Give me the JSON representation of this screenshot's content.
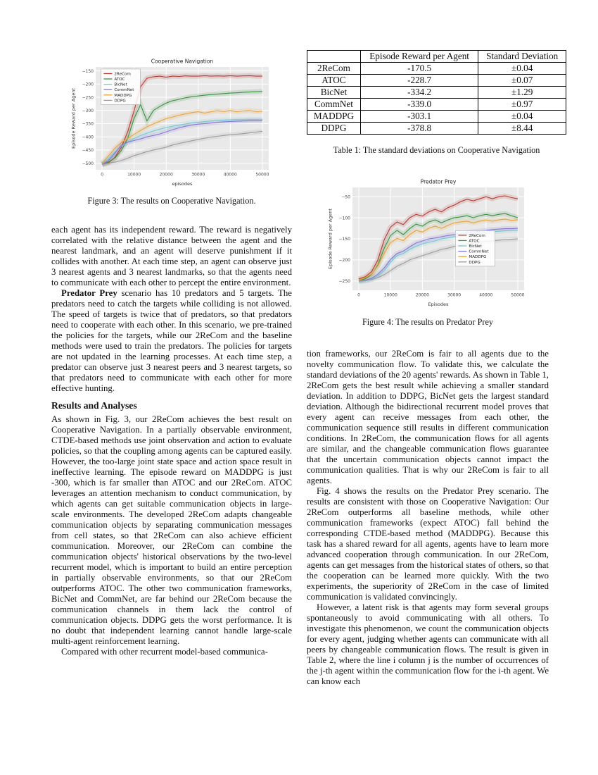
{
  "figure3": {
    "caption": "Figure 3: The results on Cooperative Navigation."
  },
  "figure4": {
    "caption": "Figure 4: The results on Predator Prey"
  },
  "table1": {
    "headers": [
      "",
      "Episode Reward per Agent",
      "Standard Deviation"
    ],
    "rows": [
      [
        "2ReCom",
        "-170.5",
        "±0.04"
      ],
      [
        "ATOC",
        "-228.7",
        "±0.07"
      ],
      [
        "BicNet",
        "-334.2",
        "±1.29"
      ],
      [
        "CommNet",
        "-339.0",
        "±0.97"
      ],
      [
        "MADDPG",
        "-303.1",
        "±0.04"
      ],
      [
        "DDPG",
        "-378.8",
        "±8.44"
      ]
    ],
    "caption": "Table 1: The standard deviations on Cooperative Navigation"
  },
  "left_column": {
    "para1": "each agent has its independent reward. The reward is negatively correlated with the relative distance between the agent and the nearest landmark, and an agent will deserve punishment if it collides with another. At each time step, an agent can observe just 3 nearest agents and 3 nearest landmarks, so that the agents need to communicate with each other to percept the entire environment.",
    "para2_lead": "Predator Prey",
    "para2_rest": " scenario has 10 predators and 5 targets. The predators need to catch the targets while colliding is not allowed. The speed of targets is twice that of predators, so that predators need to cooperate with each other. In this scenario, we pre-trained the policies for the targets, while our 2ReCom and the baseline methods were used to train the predators. The policies for targets are not updated in the learning processes. At each time step, a predator can observe just 3 nearest peers and 3 nearest targets, so that predators need to communicate with each other for more effective hunting.",
    "heading": "Results and Analyses",
    "para3": "As shown in Fig. 3, our 2ReCom achieves the best result on Cooperative Navigation. In a partially observable environment, CTDE-based methods use joint observation and action to evaluate policies, so that the coupling among agents can be captured easily. However, the too-large joint state space and action space result in ineffective learning. The episode reward on MADDPG is just -300, which is far smaller than ATOC and our 2ReCom. ATOC leverages an attention mechanism to conduct communication, by which agents can get suitable communication objects in large-scale environments. The developed 2ReCom adapts changeable communication objects by separating communication messages from cell states, so that 2ReCom can also achieve efficient communication. Moreover, our 2ReCom can combine the communication objects' historical observations by the two-level recurrent model, which is important to build an entire perception in partially observable environments, so that our 2ReCom outperforms ATOC. The other two communication frameworks, BicNet and CommNet, are far behind our 2ReCom because the communication channels in them lack the control of communication objects. DDPG gets the worst performance. It is no doubt that independent learning cannot handle large-scale multi-agent reinforcement learning.",
    "para4": "Compared with other recurrent model-based communica-"
  },
  "right_column": {
    "para1": "tion frameworks, our 2ReCom is fair to all agents due to the novelty communication flow. To validate this, we calculate the standard deviations of the 20 agents' rewards. As shown in Table 1, 2ReCom gets the best result while achieving a smaller standard deviation. In addition to DDPG, BicNet gets the largest standard deviation. Although the bidirectional recurrent model proves that every agent can receive messages from each other, the communication sequence still results in different communication conditions. In 2ReCom, the communication flows for all agents are similar, and the changeable communication flows guarantee that the uncertain communication objects cannot impact the communication qualities. That is why our 2ReCom is fair to all agents.",
    "para2": "Fig. 4 shows the results on the Predator Prey scenario. The results are consistent with those on Cooperative Navigation: Our 2ReCom outperforms all baseline methods, while other communication frameworks (expect ATOC) fall behind the corresponding CTDE-based method (MADDPG). Because this task has a shared reward for all agents, agents have to learn more advanced cooperation through communication. In our 2ReCom, agents can get messages from the historical states of others, so that the cooperation can be learned more quickly. With the two experiments, the superiority of 2ReCom in the case of limited communication is validated convincingly.",
    "para3": "However, a latent risk is that agents may form several groups spontaneously to avoid communicating with all others. To investigate this phenomenon, we count the communication objects for every agent, judging whether agents can communicate with all peers by changeable communication flows. The result is given in Table 2, where the line i column j is the number of occurrences of the j-th agent within the communication flow for the i-th agent. We can know each"
  },
  "chart_data": [
    {
      "type": "line",
      "title": "Cooperative Navigation",
      "xlabel": "episodes",
      "ylabel": "Episode Reward per Agent",
      "xlim": [
        -2000,
        52000
      ],
      "ylim": [
        -525,
        -135
      ],
      "xticks": [
        0,
        10000,
        20000,
        30000,
        40000,
        50000
      ],
      "yticks": [
        -500,
        -450,
        -400,
        -350,
        -300,
        -250,
        -200,
        -150
      ],
      "grid": true,
      "plot_bg": "#e9e9e9",
      "legend": {
        "x": 0.03,
        "y": 0.02
      },
      "x": [
        0,
        2000,
        4000,
        6000,
        8000,
        10000,
        12000,
        14000,
        16000,
        18000,
        20000,
        22000,
        24000,
        26000,
        28000,
        30000,
        32000,
        34000,
        36000,
        38000,
        40000,
        42000,
        44000,
        46000,
        48000,
        50000
      ],
      "series": [
        {
          "name": "2ReCom",
          "color": "#b63a32",
          "values": [
            -505,
            -498,
            -478,
            -440,
            -380,
            -300,
            -210,
            -178,
            -172,
            -170,
            -174,
            -170,
            -171,
            -169,
            -170,
            -170,
            -168,
            -170,
            -169,
            -170,
            -168,
            -170,
            -169,
            -168,
            -170,
            -170
          ]
        },
        {
          "name": "ATOC",
          "color": "#3f8f44",
          "values": [
            -505,
            -495,
            -480,
            -452,
            -405,
            -330,
            -278,
            -340,
            -300,
            -285,
            -272,
            -263,
            -258,
            -252,
            -248,
            -245,
            -242,
            -240,
            -238,
            -236,
            -234,
            -233,
            -231,
            -230,
            -229,
            -228
          ]
        },
        {
          "name": "BicNet",
          "color": "#76c7cf",
          "values": [
            -500,
            -482,
            -458,
            -436,
            -420,
            -406,
            -395,
            -386,
            -378,
            -371,
            -365,
            -360,
            -355,
            -351,
            -347,
            -345,
            -342,
            -340,
            -338,
            -337,
            -336,
            -335,
            -335,
            -334,
            -334,
            -334
          ]
        },
        {
          "name": "CommNet",
          "color": "#8676d6",
          "values": [
            -505,
            -490,
            -462,
            -432,
            -420,
            -414,
            -408,
            -400,
            -395,
            -389,
            -381,
            -373,
            -366,
            -360,
            -355,
            -352,
            -350,
            -348,
            -345,
            -343,
            -342,
            -341,
            -340,
            -339,
            -339,
            -339
          ]
        },
        {
          "name": "MADDPG",
          "color": "#e6a23c",
          "values": [
            -500,
            -472,
            -443,
            -421,
            -406,
            -391,
            -376,
            -362,
            -351,
            -341,
            -331,
            -325,
            -318,
            -313,
            -308,
            -305,
            -310,
            -305,
            -301,
            -304,
            -300,
            -305,
            -302,
            -300,
            -304,
            -303
          ]
        },
        {
          "name": "DDPG",
          "color": "#9a9a9a",
          "values": [
            -505,
            -500,
            -496,
            -490,
            -481,
            -471,
            -464,
            -456,
            -450,
            -445,
            -439,
            -431,
            -425,
            -420,
            -415,
            -410,
            -405,
            -401,
            -398,
            -395,
            -392,
            -390,
            -388,
            -385,
            -382,
            -379
          ]
        }
      ]
    },
    {
      "type": "line",
      "title": "Predator Prey",
      "xlabel": "Episodes",
      "ylabel": "Episode Reward per Agent",
      "xlim": [
        -2000,
        52000
      ],
      "ylim": [
        -272,
        -28
      ],
      "xticks": [
        0,
        10000,
        20000,
        30000,
        40000,
        50000
      ],
      "yticks": [
        -250,
        -200,
        -150,
        -100,
        -50
      ],
      "grid": true,
      "plot_bg": "#e9e9e9",
      "legend": {
        "x": 0.6,
        "y": 0.42
      },
      "x": [
        0,
        2000,
        4000,
        6000,
        8000,
        10000,
        12000,
        14000,
        16000,
        18000,
        20000,
        22000,
        24000,
        26000,
        28000,
        30000,
        32000,
        34000,
        36000,
        38000,
        40000,
        42000,
        44000,
        46000,
        48000,
        50000
      ],
      "series": [
        {
          "name": "2ReCom",
          "color": "#b63a32",
          "values": [
            -245,
            -240,
            -228,
            -200,
            -152,
            -122,
            -110,
            -116,
            -100,
            -92,
            -96,
            -86,
            -80,
            -86,
            -76,
            -70,
            -62,
            -56,
            -60,
            -55,
            -50,
            -55,
            -50,
            -48,
            -52,
            -55
          ]
        },
        {
          "name": "ATOC",
          "color": "#3f8f44",
          "values": [
            -250,
            -245,
            -235,
            -212,
            -172,
            -142,
            -130,
            -140,
            -126,
            -115,
            -120,
            -110,
            -105,
            -112,
            -105,
            -100,
            -98,
            -95,
            -100,
            -95,
            -92,
            -95,
            -92,
            -90,
            -95,
            -100
          ]
        },
        {
          "name": "BicNet",
          "color": "#76c7cf",
          "values": [
            -252,
            -250,
            -246,
            -238,
            -225,
            -205,
            -190,
            -185,
            -175,
            -168,
            -162,
            -158,
            -155,
            -150,
            -148,
            -145,
            -143,
            -140,
            -138,
            -136,
            -135,
            -133,
            -132,
            -131,
            -130,
            -130
          ]
        },
        {
          "name": "CommNet",
          "color": "#8676d6",
          "values": [
            -250,
            -248,
            -244,
            -234,
            -219,
            -199,
            -185,
            -179,
            -169,
            -160,
            -155,
            -150,
            -148,
            -145,
            -142,
            -140,
            -138,
            -135,
            -133,
            -132,
            -130,
            -128,
            -127,
            -126,
            -126,
            -125
          ]
        },
        {
          "name": "MADDPG",
          "color": "#e6a23c",
          "values": [
            -248,
            -242,
            -234,
            -214,
            -184,
            -159,
            -149,
            -154,
            -140,
            -130,
            -134,
            -125,
            -120,
            -125,
            -118,
            -112,
            -110,
            -108,
            -112,
            -108,
            -105,
            -108,
            -105,
            -103,
            -106,
            -105
          ]
        },
        {
          "name": "DDPG",
          "color": "#9a9a9a",
          "values": [
            -250,
            -249,
            -247,
            -242,
            -235,
            -225,
            -215,
            -208,
            -200,
            -195,
            -190,
            -185,
            -180,
            -175,
            -172,
            -168,
            -165,
            -162,
            -160,
            -158,
            -156,
            -155,
            -153,
            -152,
            -151,
            -150
          ]
        }
      ]
    }
  ]
}
